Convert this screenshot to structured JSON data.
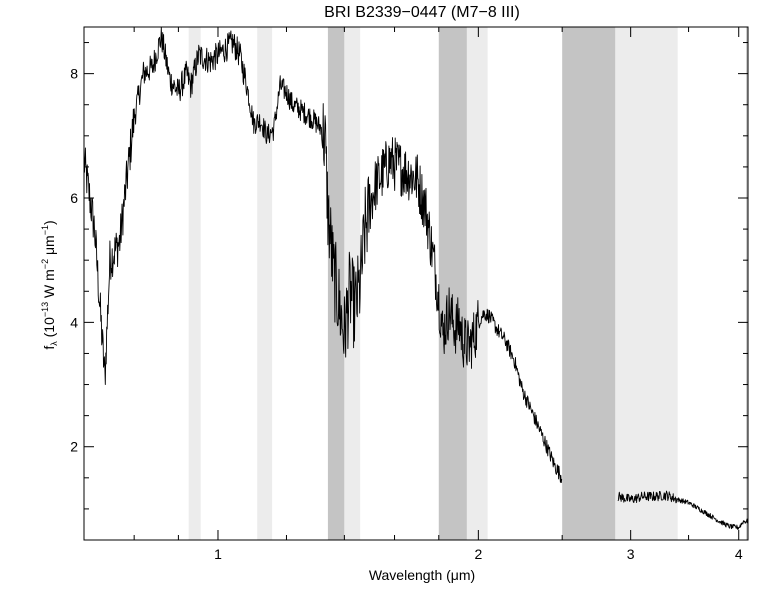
{
  "chart_data": {
    "type": "line",
    "title": "BRI B2339−0447 (M7−8 III)",
    "xlabel": "Wavelength (μm)",
    "ylabel": {
      "base": "f",
      "sub": "λ",
      "open": " (10",
      "exp1": "−13",
      "mid": " W m",
      "exp2": "−2",
      "mid2": " μm",
      "exp3": "−1",
      "close": ")"
    },
    "xscale": "log",
    "xlim": [
      0.7,
      4.1
    ],
    "ylim": [
      0.5,
      8.75
    ],
    "xticks": [
      {
        "value": 1,
        "label": "1"
      },
      {
        "value": 2,
        "label": "2"
      },
      {
        "value": 3,
        "label": "3"
      },
      {
        "value": 4,
        "label": "4"
      }
    ],
    "yticks": [
      {
        "value": 2,
        "label": "2"
      },
      {
        "value": 4,
        "label": "4"
      },
      {
        "value": 6,
        "label": "6"
      },
      {
        "value": 8,
        "label": "8"
      }
    ],
    "grid": false,
    "colors": {
      "line": "#000000",
      "band_dark": "#c4c4c4",
      "band_light": "#ececec"
    },
    "shaded_bands": [
      {
        "x0": 0.925,
        "x1": 0.955,
        "shade": "light"
      },
      {
        "x0": 1.11,
        "x1": 1.155,
        "shade": "light"
      },
      {
        "x0": 1.34,
        "x1": 1.4,
        "shade": "dark"
      },
      {
        "x0": 1.4,
        "x1": 1.46,
        "shade": "light"
      },
      {
        "x0": 1.8,
        "x1": 1.94,
        "shade": "dark"
      },
      {
        "x0": 1.94,
        "x1": 2.05,
        "shade": "light"
      },
      {
        "x0": 2.5,
        "x1": 2.88,
        "shade": "dark"
      },
      {
        "x0": 2.88,
        "x1": 3.4,
        "shade": "light"
      },
      {
        "x0": 4.08,
        "x1": 4.1,
        "shade": "dark"
      }
    ],
    "series": [
      {
        "x": [
          0.7,
          0.72,
          0.74,
          0.75,
          0.77,
          0.78,
          0.8,
          0.82,
          0.84,
          0.86,
          0.88,
          0.9,
          0.92,
          0.93,
          0.95,
          0.98,
          1.0,
          1.02,
          1.04,
          1.06,
          1.08,
          1.1,
          1.12,
          1.14,
          1.16,
          1.18,
          1.2,
          1.22,
          1.25,
          1.28,
          1.3,
          1.32,
          1.33,
          1.34,
          1.36,
          1.38,
          1.4,
          1.42,
          1.44,
          1.46,
          1.48,
          1.5,
          1.52,
          1.55,
          1.58,
          1.62,
          1.66,
          1.7,
          1.74,
          1.78,
          1.8,
          1.82,
          1.85,
          1.88,
          1.9,
          1.92,
          1.95,
          1.98,
          2.0,
          2.03,
          2.06,
          2.1,
          2.15,
          2.2,
          2.25,
          2.3,
          2.35,
          2.4,
          2.45,
          2.5,
          2.9,
          3.0,
          3.1,
          3.2,
          3.3,
          3.4,
          3.5,
          3.6,
          3.7,
          3.8,
          3.9,
          4.0,
          4.05,
          4.1
        ],
        "y": [
          6.6,
          5.5,
          3.1,
          5.0,
          5.3,
          6.0,
          7.3,
          8.0,
          8.1,
          8.6,
          7.9,
          7.7,
          8.0,
          7.8,
          8.3,
          8.2,
          8.3,
          8.4,
          8.5,
          8.3,
          7.8,
          7.2,
          7.25,
          7.0,
          7.1,
          7.8,
          7.7,
          7.5,
          7.4,
          7.3,
          7.2,
          7.1,
          6.9,
          5.8,
          4.8,
          4.3,
          3.8,
          4.5,
          4.2,
          4.6,
          5.5,
          5.9,
          6.2,
          6.4,
          6.6,
          6.5,
          6.4,
          6.3,
          5.8,
          4.9,
          4.4,
          3.8,
          4.2,
          3.9,
          4.0,
          3.7,
          3.6,
          3.8,
          4.0,
          4.15,
          4.1,
          3.9,
          3.7,
          3.4,
          2.9,
          2.6,
          2.3,
          2.0,
          1.7,
          1.5,
          1.2,
          1.15,
          1.2,
          1.2,
          1.22,
          1.15,
          1.1,
          1.0,
          0.9,
          0.8,
          0.72,
          0.7,
          0.8,
          0.8
        ]
      }
    ]
  }
}
